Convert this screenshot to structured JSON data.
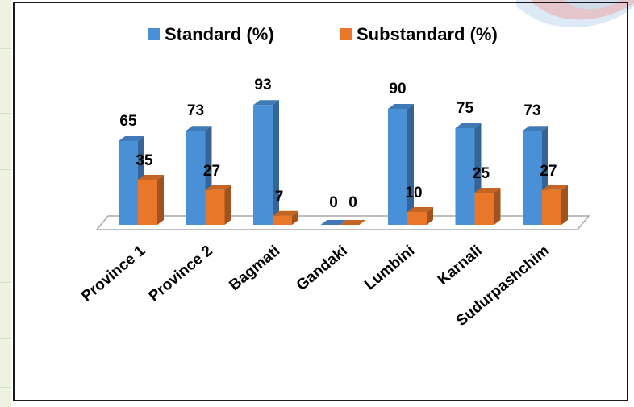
{
  "chart_data": {
    "type": "bar",
    "categories": [
      "Province 1",
      "Province 2",
      "Bagmati",
      "Gandaki",
      "Lumbini",
      "Karnali",
      "Sudurpashchim"
    ],
    "series": [
      {
        "name": "Standard (%)",
        "values": [
          65,
          73,
          93,
          0,
          90,
          75,
          73
        ],
        "color": "#4a90d6"
      },
      {
        "name": "Substandard (%)",
        "values": [
          35,
          27,
          7,
          0,
          10,
          25,
          27
        ],
        "color": "#e8772a"
      }
    ],
    "title": "",
    "xlabel": "",
    "ylabel": "",
    "ylim": [
      0,
      100
    ],
    "grid": false,
    "legend_position": "top",
    "style": "3d-clustered-column"
  }
}
